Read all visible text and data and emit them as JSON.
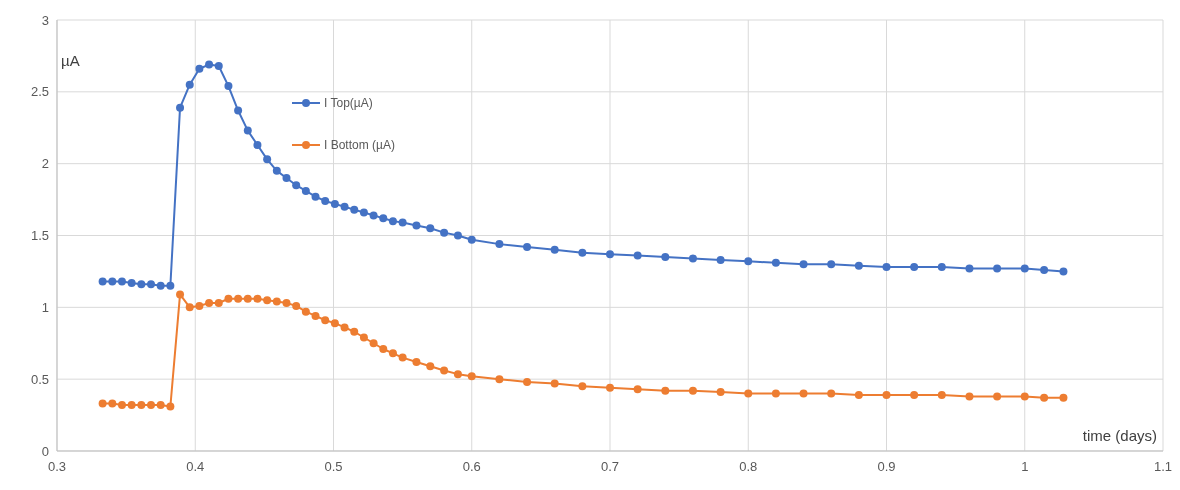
{
  "chart_data": {
    "type": "line",
    "xlabel": "time (days)",
    "ylabel": "µA",
    "x": [
      0.333,
      0.34,
      0.347,
      0.354,
      0.361,
      0.368,
      0.375,
      0.382,
      0.389,
      0.396,
      0.403,
      0.41,
      0.417,
      0.424,
      0.431,
      0.438,
      0.445,
      0.452,
      0.459,
      0.466,
      0.473,
      0.48,
      0.487,
      0.494,
      0.501,
      0.508,
      0.515,
      0.522,
      0.529,
      0.536,
      0.543,
      0.55,
      0.56,
      0.57,
      0.58,
      0.59,
      0.6,
      0.62,
      0.64,
      0.66,
      0.68,
      0.7,
      0.72,
      0.74,
      0.76,
      0.78,
      0.8,
      0.82,
      0.84,
      0.86,
      0.88,
      0.9,
      0.92,
      0.94,
      0.96,
      0.98,
      1.0,
      1.014,
      1.028
    ],
    "series": [
      {
        "name": "I Top(µA)",
        "color": "#4472c4",
        "values": [
          1.18,
          1.18,
          1.18,
          1.17,
          1.16,
          1.16,
          1.15,
          1.15,
          2.39,
          2.55,
          2.66,
          2.69,
          2.68,
          2.54,
          2.37,
          2.23,
          2.13,
          2.03,
          1.95,
          1.9,
          1.85,
          1.81,
          1.77,
          1.74,
          1.72,
          1.7,
          1.68,
          1.66,
          1.64,
          1.62,
          1.6,
          1.59,
          1.57,
          1.55,
          1.52,
          1.5,
          1.47,
          1.44,
          1.42,
          1.4,
          1.38,
          1.37,
          1.36,
          1.35,
          1.34,
          1.33,
          1.32,
          1.31,
          1.3,
          1.3,
          1.29,
          1.28,
          1.28,
          1.28,
          1.27,
          1.27,
          1.27,
          1.26,
          1.25
        ]
      },
      {
        "name": "I Bottom (µA)",
        "color": "#ed7d31",
        "values": [
          0.33,
          0.33,
          0.32,
          0.32,
          0.32,
          0.32,
          0.32,
          0.31,
          1.09,
          1.0,
          1.01,
          1.03,
          1.03,
          1.06,
          1.06,
          1.06,
          1.06,
          1.05,
          1.04,
          1.03,
          1.01,
          0.97,
          0.94,
          0.91,
          0.89,
          0.86,
          0.83,
          0.79,
          0.75,
          0.71,
          0.68,
          0.65,
          0.62,
          0.59,
          0.56,
          0.535,
          0.52,
          0.5,
          0.48,
          0.47,
          0.45,
          0.44,
          0.43,
          0.42,
          0.42,
          0.41,
          0.4,
          0.4,
          0.4,
          0.4,
          0.39,
          0.39,
          0.39,
          0.39,
          0.38,
          0.38,
          0.38,
          0.37,
          0.37
        ]
      }
    ],
    "xlim": [
      0.3,
      1.1
    ],
    "xticks": [
      0.3,
      0.4,
      0.5,
      0.6,
      0.7,
      0.8,
      0.9,
      1,
      1.1
    ],
    "ylim": [
      0,
      3
    ],
    "yticks": [
      0,
      0.5,
      1,
      1.5,
      2,
      2.5,
      3
    ],
    "grid": true,
    "legend": "top",
    "marker": "circle",
    "line_style": "solid"
  }
}
